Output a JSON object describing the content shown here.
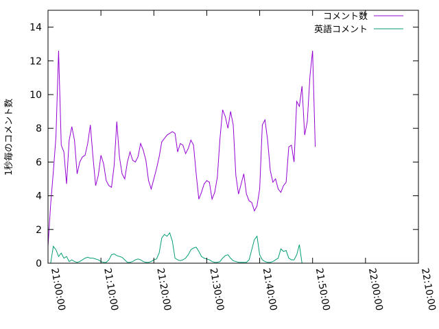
{
  "chart_data": {
    "type": "line",
    "title": "",
    "xlabel": "",
    "ylabel": "1秒毎のコメント数",
    "ylim": [
      0,
      15
    ],
    "yticks": [
      0,
      2,
      4,
      6,
      8,
      10,
      12,
      14
    ],
    "xlim": [
      "21:00:00",
      "22:10:00"
    ],
    "xticks": [
      "21:00:00",
      "21:10:00",
      "21:20:00",
      "21:30:00",
      "21:40:00",
      "21:50:00",
      "22:00:00",
      "22:10:00"
    ],
    "grid": false,
    "legend_position": "top-right",
    "x_step_seconds": 30,
    "series": [
      {
        "name": "コメント数",
        "color": "#9400D3",
        "x_start": "21:00:00",
        "values": [
          1.0,
          3.5,
          5.4,
          7.5,
          12.6,
          7.0,
          6.6,
          4.7,
          7.3,
          8.1,
          7.3,
          5.3,
          6.0,
          6.3,
          6.4,
          7.1,
          8.2,
          6.3,
          4.6,
          5.2,
          6.4,
          5.9,
          4.9,
          4.6,
          4.5,
          5.8,
          8.4,
          6.3,
          5.3,
          5.0,
          6.0,
          6.6,
          6.1,
          6.0,
          6.3,
          7.1,
          6.7,
          6.1,
          4.9,
          4.4,
          5.0,
          5.6,
          6.3,
          7.2,
          7.4,
          7.6,
          7.7,
          7.8,
          7.7,
          6.6,
          7.1,
          7.0,
          6.5,
          6.8,
          7.3,
          7.0,
          5.3,
          3.8,
          4.2,
          4.7,
          4.9,
          4.8,
          3.8,
          4.2,
          5.1,
          7.4,
          9.1,
          8.7,
          8.0,
          9.0,
          8.2,
          5.2,
          4.1,
          4.7,
          5.3,
          4.1,
          3.7,
          3.6,
          3.1,
          3.4,
          4.4,
          8.2,
          8.5,
          7.3,
          5.5,
          4.8,
          5.0,
          4.4,
          4.2,
          4.6,
          4.8,
          6.9,
          7.0,
          6.0,
          9.6,
          9.3,
          10.5,
          7.6,
          8.4,
          11.1,
          12.6,
          6.9
        ]
      },
      {
        "name": "英語コメント",
        "color": "#009E73",
        "x_start": "21:00:30",
        "values": [
          0.0,
          1.0,
          0.8,
          0.4,
          0.6,
          0.3,
          0.4,
          0.1,
          0.2,
          0.1,
          0.05,
          0.1,
          0.2,
          0.3,
          0.35,
          0.3,
          0.3,
          0.25,
          0.2,
          0.1,
          0.05,
          0.05,
          0.2,
          0.5,
          0.55,
          0.45,
          0.4,
          0.35,
          0.2,
          0.05,
          0.05,
          0.1,
          0.2,
          0.25,
          0.2,
          0.1,
          0.05,
          0.05,
          0.1,
          0.2,
          0.25,
          0.6,
          1.5,
          1.7,
          1.6,
          1.8,
          1.3,
          0.3,
          0.2,
          0.15,
          0.2,
          0.3,
          0.5,
          0.8,
          0.9,
          0.95,
          0.7,
          0.4,
          0.3,
          0.25,
          0.2,
          0.1,
          0.05,
          0.05,
          0.1,
          0.3,
          0.45,
          0.5,
          0.3,
          0.15,
          0.1,
          0.05,
          0.05,
          0.05,
          0.05,
          0.2,
          0.8,
          1.4,
          1.6,
          0.5,
          0.2,
          0.1,
          0.05,
          0.05,
          0.1,
          0.2,
          0.3,
          0.85,
          0.7,
          0.75,
          0.3,
          0.2,
          0.2,
          0.5,
          1.1,
          0.0
        ]
      }
    ]
  }
}
